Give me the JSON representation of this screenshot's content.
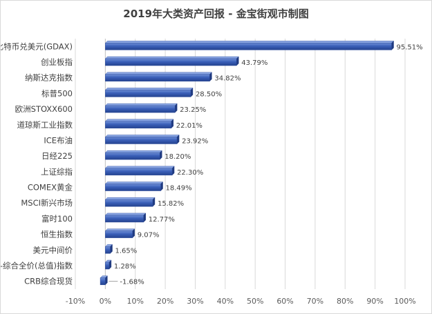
{
  "chart_data": {
    "type": "bar",
    "orientation": "horizontal",
    "title": "2019年大类资产回报 - 金宝街观市制图",
    "categories": [
      "比特币兑美元(GDAX)",
      "创业板指",
      "纳斯达克指数",
      "标普500",
      "欧洲STOXX600",
      "道琼斯工业指数",
      "ICE布油",
      "日经225",
      "上证综指",
      "COMEX黄金",
      "MSCI新兴市场",
      "富时100",
      "恒生指数",
      "美元中间价",
      "中债-综合全价(总值)指数",
      "CRB综合现货"
    ],
    "values": [
      95.51,
      43.79,
      34.82,
      28.5,
      23.25,
      22.01,
      23.92,
      18.2,
      22.3,
      18.49,
      15.82,
      12.77,
      9.07,
      1.65,
      1.28,
      -1.68
    ],
    "value_labels": [
      "95.51%",
      "43.79%",
      "34.82%",
      "28.50%",
      "23.25%",
      "22.01%",
      "23.92%",
      "18.20%",
      "22.30%",
      "18.49%",
      "15.82%",
      "12.77%",
      "9.07%",
      "1.65%",
      "1.28%",
      "-1.68%"
    ],
    "x_ticks": [
      "-10%",
      "0%",
      "10%",
      "20%",
      "30%",
      "40%",
      "50%",
      "60%",
      "70%",
      "80%",
      "90%",
      "100%"
    ],
    "xlim": [
      -10,
      100
    ],
    "grid": "vertical",
    "legend": "none",
    "bar_color": "#3a5fb8"
  }
}
